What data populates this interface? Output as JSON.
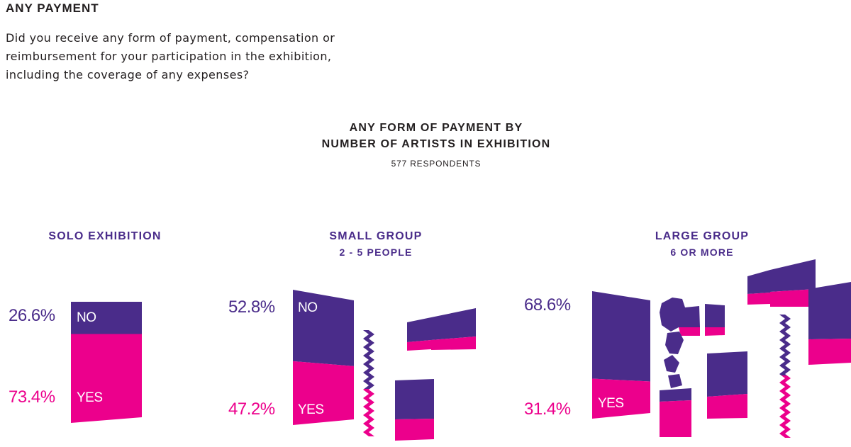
{
  "header": {
    "title": "ANY PAYMENT",
    "question_lines": [
      "Did you receive any form of payment, compensation or",
      "reimbursement for your participation in the exhibition,",
      "including the coverage of any expenses?"
    ]
  },
  "colors": {
    "no": "#4a2c8a",
    "yes": "#ec008c",
    "text": "#231f20"
  },
  "chart_data": {
    "type": "bar",
    "title_lines": [
      "ANY FORM OF PAYMENT BY",
      "NUMBER OF ARTISTS IN EXHIBITION"
    ],
    "subtitle": "577 RESPONDENTS",
    "categories": [
      "SOLO EXHIBITION",
      "SMALL GROUP",
      "LARGE GROUP"
    ],
    "category_subtitles": [
      "",
      "2 - 5 PEOPLE",
      "6 OR MORE"
    ],
    "series": [
      {
        "name": "NO",
        "values": [
          26.6,
          52.8,
          68.6
        ]
      },
      {
        "name": "YES",
        "values": [
          73.4,
          47.2,
          31.4
        ]
      }
    ],
    "value_labels": {
      "no": [
        "26.6%",
        "52.8%",
        "68.6%"
      ],
      "yes": [
        "73.4%",
        "47.2%",
        "31.4%"
      ]
    },
    "segment_labels": {
      "no": [
        "NO",
        "NO",
        ""
      ],
      "yes": [
        "YES",
        "YES",
        "YES"
      ]
    },
    "stacked": true
  }
}
